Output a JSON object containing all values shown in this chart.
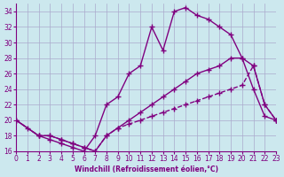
{
  "xlabel": "Windchill (Refroidissement éolien,°C)",
  "xlim": [
    0,
    23
  ],
  "ylim": [
    16,
    35
  ],
  "xticks": [
    0,
    1,
    2,
    3,
    4,
    5,
    6,
    7,
    8,
    9,
    10,
    11,
    12,
    13,
    14,
    15,
    16,
    17,
    18,
    19,
    20,
    21,
    22,
    23
  ],
  "yticks": [
    16,
    18,
    20,
    22,
    24,
    26,
    28,
    30,
    32,
    34
  ],
  "bg_color": "#cce8ee",
  "line_color": "#800080",
  "grid_color": "#aaaacc",
  "line1_x": [
    0,
    1,
    2,
    3,
    4,
    5,
    6,
    7,
    8,
    9,
    10,
    11,
    12,
    13,
    14,
    15,
    16,
    17,
    18,
    19,
    20,
    21,
    22,
    23
  ],
  "line1_y": [
    20,
    19,
    18,
    17.5,
    17,
    16.5,
    16,
    18,
    22,
    23,
    26,
    27,
    32,
    29,
    34,
    34.5,
    33.5,
    33,
    32,
    31,
    28,
    24,
    20.5,
    20
  ],
  "line2_x": [
    0,
    2,
    3,
    4,
    5,
    6,
    7,
    8,
    9,
    10,
    11,
    12,
    13,
    14,
    15,
    16,
    17,
    18,
    19,
    20,
    21,
    22,
    23
  ],
  "line2_y": [
    20,
    18,
    18,
    17.5,
    17,
    16.5,
    16,
    18,
    19,
    20,
    21,
    22,
    23,
    24,
    25,
    26,
    26.5,
    27,
    28,
    28,
    27,
    22,
    20
  ],
  "line3_x": [
    0,
    2,
    3,
    4,
    5,
    6,
    7,
    8,
    9,
    10,
    11,
    12,
    13,
    14,
    15,
    16,
    17,
    18,
    19,
    20,
    21,
    22,
    23
  ],
  "line3_y": [
    20,
    18,
    18,
    17.5,
    17,
    16.5,
    16,
    18,
    19,
    19.5,
    20,
    20.5,
    21,
    21.5,
    22,
    22.5,
    23,
    23.5,
    24,
    24.5,
    27,
    22,
    20
  ]
}
